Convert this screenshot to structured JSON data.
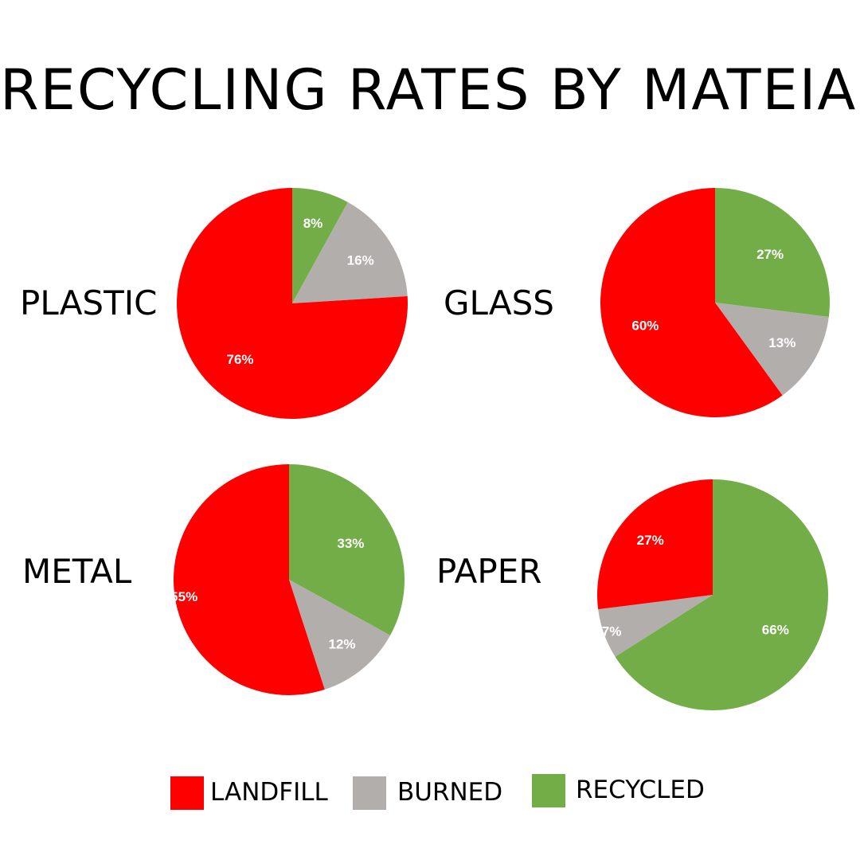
{
  "title": "RECYCLING RATES BY MATEIAL",
  "colors": {
    "landfill": "#ff0000",
    "burned": "#b2aeab",
    "recycled": "#72ad47"
  },
  "legend": [
    {
      "label": "LANDFILL",
      "color_key": "landfill"
    },
    {
      "label": "BURNED",
      "color_key": "burned"
    },
    {
      "label": "RECYCLED",
      "color_key": "recycled"
    }
  ],
  "chart_data": [
    {
      "type": "pie",
      "title": "PLASTIC",
      "categories": [
        "LANDFILL",
        "BURNED",
        "RECYCLED"
      ],
      "values": [
        76,
        16,
        8
      ],
      "labels": [
        "76%",
        "16%",
        "8%"
      ]
    },
    {
      "type": "pie",
      "title": "GLASS",
      "categories": [
        "LANDFILL",
        "BURNED",
        "RECYCLED"
      ],
      "values": [
        60,
        13,
        27
      ],
      "labels": [
        "60%",
        "13%",
        "27%"
      ]
    },
    {
      "type": "pie",
      "title": "METAL",
      "categories": [
        "LANDFILL",
        "BURNED",
        "RECYCLED"
      ],
      "values": [
        55,
        12,
        33
      ],
      "labels": [
        "55%",
        "12%",
        "33%"
      ]
    },
    {
      "type": "pie",
      "title": "PAPER",
      "categories": [
        "LANDFILL",
        "BURNED",
        "RECYCLED"
      ],
      "values": [
        27,
        7,
        66
      ],
      "labels": [
        "27%",
        "7%",
        "66%"
      ]
    }
  ]
}
